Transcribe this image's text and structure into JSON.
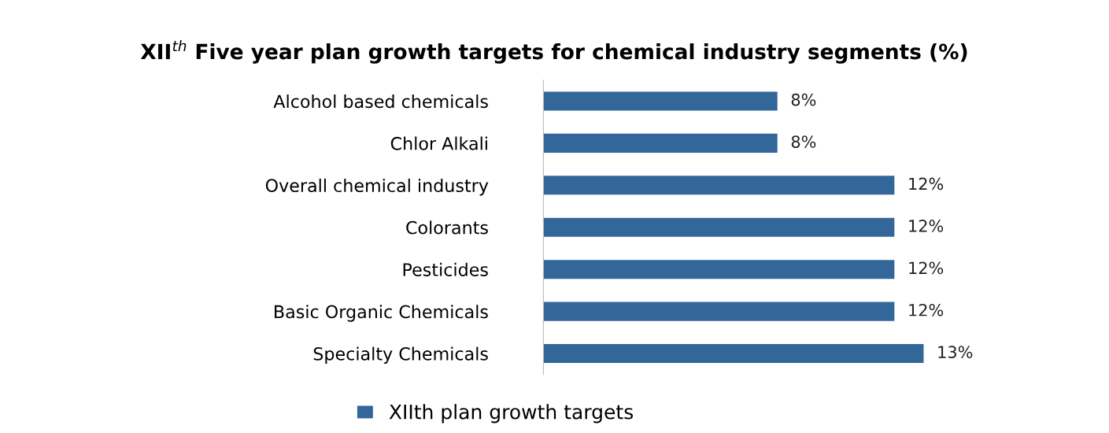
{
  "chart_data": {
    "type": "bar",
    "orientation": "horizontal",
    "title": "XII$^{th}$ Five year plan growth targets for chemical industry segments (%)",
    "categories": [
      "Alcohol based chemicals",
      "Chlor Alkali",
      "Overall chemical industry",
      "Colorants",
      "Pesticides",
      "Basic Organic Chemicals",
      "Specialty Chemicals"
    ],
    "series": [
      {
        "name": "XIIth plan growth targets",
        "color": "#336699",
        "values": [
          8,
          8,
          12,
          12,
          12,
          12,
          13
        ],
        "value_labels": [
          "8%",
          "8%",
          "12%",
          "12%",
          "12%",
          "12%",
          "13%"
        ]
      }
    ],
    "tick_labels": "y",
    "grid": false,
    "legend": "bottom"
  }
}
